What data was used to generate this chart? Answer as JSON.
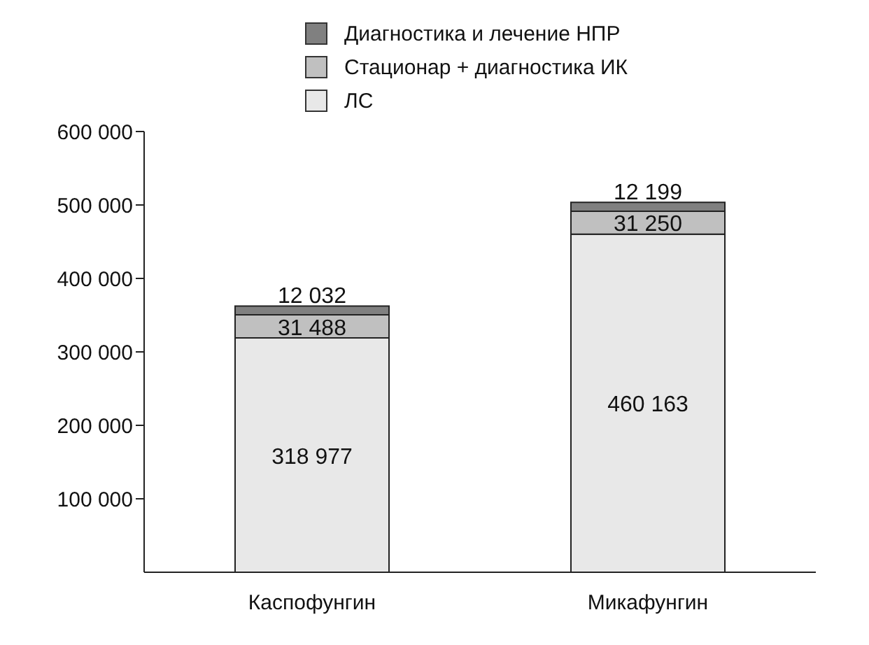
{
  "chart_data": {
    "type": "bar",
    "stacked": true,
    "categories": [
      "Каспофунгин",
      "Микафунгин"
    ],
    "series": [
      {
        "name": "ЛС",
        "color": "#e8e8e8",
        "values": [
          318977,
          460163
        ],
        "value_labels": [
          "318 977",
          "460 163"
        ]
      },
      {
        "name": "Стационар + диагностика ИК",
        "color": "#c0c0c0",
        "values": [
          31488,
          31250
        ],
        "value_labels": [
          "31 488",
          "31 250"
        ]
      },
      {
        "name": "Диагностика и лечение НПР",
        "color": "#808080",
        "values": [
          12032,
          12199
        ],
        "value_labels": [
          "12 032",
          "12 199"
        ]
      }
    ],
    "ylim": [
      0,
      600000
    ],
    "yticks": [
      {
        "value": 100000,
        "label": "100 000"
      },
      {
        "value": 200000,
        "label": "200 000"
      },
      {
        "value": 300000,
        "label": "300 000"
      },
      {
        "value": 400000,
        "label": "400 000"
      },
      {
        "value": 500000,
        "label": "500 000"
      },
      {
        "value": 600000,
        "label": "600 000"
      }
    ],
    "grid": false,
    "legend": "top"
  }
}
